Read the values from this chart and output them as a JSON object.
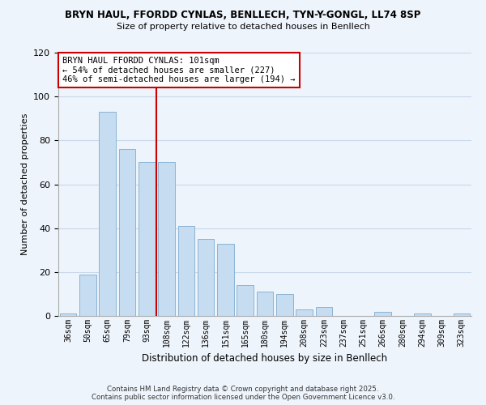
{
  "title": "BRYN HAUL, FFORDD CYNLAS, BENLLECH, TYN-Y-GONGL, LL74 8SP",
  "subtitle": "Size of property relative to detached houses in Benllech",
  "xlabel": "Distribution of detached houses by size in Benllech",
  "ylabel": "Number of detached properties",
  "bar_labels": [
    "36sqm",
    "50sqm",
    "65sqm",
    "79sqm",
    "93sqm",
    "108sqm",
    "122sqm",
    "136sqm",
    "151sqm",
    "165sqm",
    "180sqm",
    "194sqm",
    "208sqm",
    "223sqm",
    "237sqm",
    "251sqm",
    "266sqm",
    "280sqm",
    "294sqm",
    "309sqm",
    "323sqm"
  ],
  "bar_values": [
    1,
    19,
    93,
    76,
    70,
    70,
    41,
    35,
    33,
    14,
    11,
    10,
    3,
    4,
    0,
    0,
    2,
    0,
    1,
    0,
    1
  ],
  "bar_color": "#c6dcf0",
  "bar_edge_color": "#8ab4d4",
  "ylim": [
    0,
    120
  ],
  "yticks": [
    0,
    20,
    40,
    60,
    80,
    100,
    120
  ],
  "vline_x_index": 5,
  "vline_color": "#cc0000",
  "annotation_title": "BRYN HAUL FFORDD CYNLAS: 101sqm",
  "annotation_line1": "← 54% of detached houses are smaller (227)",
  "annotation_line2": "46% of semi-detached houses are larger (194) →",
  "footer_line1": "Contains HM Land Registry data © Crown copyright and database right 2025.",
  "footer_line2": "Contains public sector information licensed under the Open Government Licence v3.0.",
  "background_color": "#eef4fb",
  "grid_color": "#c8d8ea"
}
